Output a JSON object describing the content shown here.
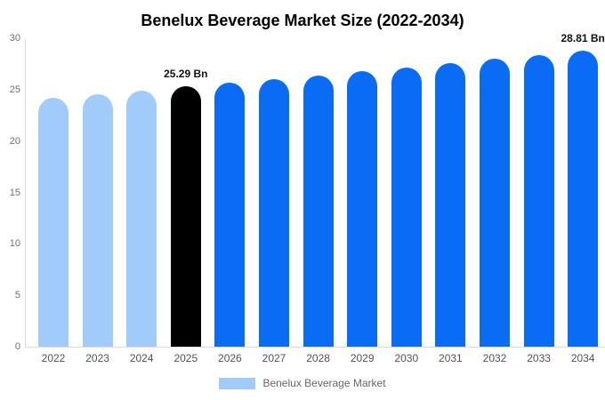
{
  "chart_data": {
    "type": "bar",
    "title": "Benelux Beverage Market Size (2022-2034)",
    "categories": [
      "2022",
      "2023",
      "2024",
      "2025",
      "2026",
      "2027",
      "2028",
      "2029",
      "2030",
      "2031",
      "2032",
      "2033",
      "2034"
    ],
    "values": [
      24.21,
      24.56,
      24.92,
      25.29,
      25.66,
      26.03,
      26.41,
      26.8,
      27.19,
      27.59,
      27.99,
      28.4,
      28.81
    ],
    "bar_colors": [
      "#a1cbfa",
      "#a1cbfa",
      "#a1cbfa",
      "#000000",
      "#0a6cf5",
      "#0a6cf5",
      "#0a6cf5",
      "#0a6cf5",
      "#0a6cf5",
      "#0a6cf5",
      "#0a6cf5",
      "#0a6cf5",
      "#0a6cf5"
    ],
    "annotations": [
      {
        "category": "2025",
        "text": "25.29 Bn"
      },
      {
        "category": "2034",
        "text": "28.81 Bn"
      }
    ],
    "xlabel": "",
    "ylabel": "",
    "ylim": [
      0,
      30
    ],
    "yticks": [
      0,
      5,
      10,
      15,
      20,
      25,
      30
    ],
    "grid": false,
    "legend_position": "bottom",
    "legend": [
      {
        "label": "Benelux Beverage Market",
        "swatch_color": "#a1cbfa"
      }
    ],
    "colors": {
      "historical": "#a1cbfa",
      "base_year_highlight": "#000000",
      "forecast": "#0a6cf5",
      "axis_line": "#dcdcdc"
    }
  }
}
